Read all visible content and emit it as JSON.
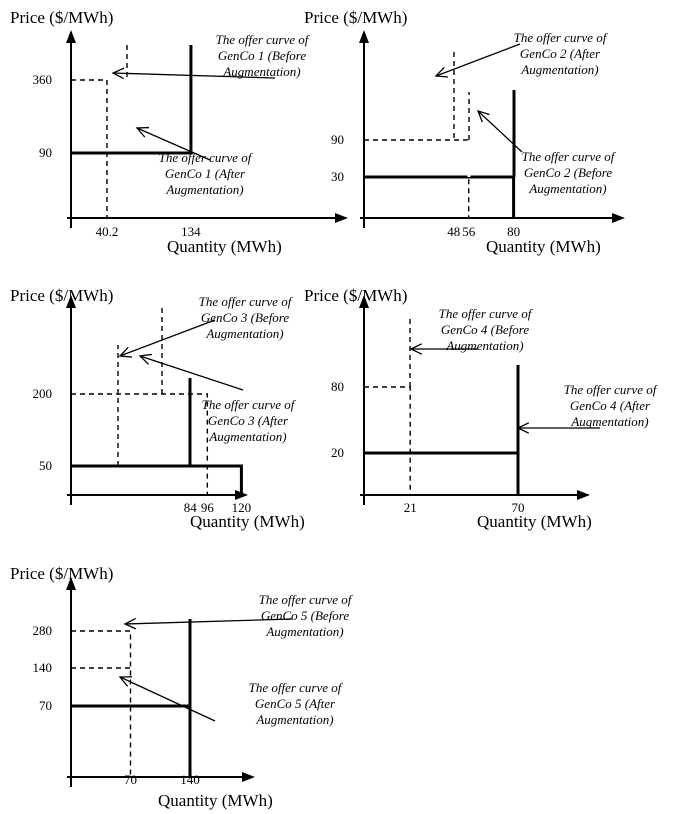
{
  "chart_data": [
    {
      "type": "line",
      "ylabel": "Price ($/MWh)",
      "xlabel": "Quantity (MWh)",
      "x_ticks": [
        "40.2",
        "134"
      ],
      "y_ticks": [
        "90",
        "360"
      ],
      "series": [
        {
          "style": "dashed",
          "x": [
            0,
            40.2,
            40.2
          ],
          "y": [
            360,
            360,
            0
          ]
        },
        {
          "style": "solid",
          "x": [
            0,
            134,
            134
          ],
          "y": [
            90,
            90,
            500
          ]
        }
      ],
      "annotations": [
        {
          "lines": [
            "The offer curve of",
            "GenCo 1 (Before",
            "Augmentation)"
          ]
        },
        {
          "lines": [
            "The offer curve of",
            "GenCo 1 (After",
            "Augmentation)"
          ]
        }
      ]
    },
    {
      "type": "line",
      "ylabel": "Price ($/MWh)",
      "xlabel": "Quantity (MWh)",
      "x_ticks": [
        "48",
        "56",
        "80"
      ],
      "y_ticks": [
        "30",
        "90"
      ],
      "series": [
        {
          "style": "dashed",
          "x": [
            0,
            56,
            56
          ],
          "y": [
            90,
            90,
            0
          ]
        },
        {
          "style": "solid",
          "x": [
            0,
            80,
            80
          ],
          "y": [
            30,
            30,
            0
          ]
        }
      ],
      "annotations": [
        {
          "lines": [
            "The offer curve of",
            "GenCo 2 (After",
            "Augmentation)"
          ]
        },
        {
          "lines": [
            "The offer curve of",
            "GenCo 2 (Before",
            "Augmentation)"
          ]
        }
      ]
    },
    {
      "type": "line",
      "ylabel": "Price ($/MWh)",
      "xlabel": "Quantity (MWh)",
      "x_ticks": [
        "84",
        "96",
        "120"
      ],
      "y_ticks": [
        "50",
        "200"
      ],
      "series": [
        {
          "style": "dashed",
          "x": [
            0,
            96,
            96
          ],
          "y": [
            200,
            200,
            0
          ]
        },
        {
          "style": "solid",
          "x": [
            0,
            120,
            120
          ],
          "y": [
            50,
            50,
            0
          ]
        }
      ],
      "annotations": [
        {
          "lines": [
            "The offer curve of",
            "GenCo 3 (Before",
            "Augmentation)"
          ]
        },
        {
          "lines": [
            "The offer curve of",
            "GenCo 3 (After",
            "Augmentation)"
          ]
        }
      ]
    },
    {
      "type": "line",
      "ylabel": "Price ($/MWh)",
      "xlabel": "Quantity (MWh)",
      "x_ticks": [
        "21",
        "70"
      ],
      "y_ticks": [
        "20",
        "80"
      ],
      "series": [
        {
          "style": "dashed",
          "x": [
            0,
            21,
            21
          ],
          "y": [
            80,
            80,
            0
          ]
        },
        {
          "style": "solid",
          "x": [
            0,
            70,
            70
          ],
          "y": [
            20,
            20,
            0
          ]
        }
      ],
      "annotations": [
        {
          "lines": [
            "The offer curve of",
            "GenCo 4 (Before",
            "Augmentation)"
          ]
        },
        {
          "lines": [
            "The offer curve of",
            "GenCo 4 (After",
            "Augmentation)"
          ]
        }
      ]
    },
    {
      "type": "line",
      "ylabel": "Price ($/MWh)",
      "xlabel": "Quantity (MWh)",
      "x_ticks": [
        "70",
        "140"
      ],
      "y_ticks": [
        "70",
        "140",
        "280"
      ],
      "series": [
        {
          "style": "dashed",
          "x": [
            0,
            70,
            70
          ],
          "y": [
            280,
            280,
            0
          ]
        },
        {
          "style": "dashed",
          "x": [
            0,
            70
          ],
          "y": [
            140,
            140
          ]
        },
        {
          "style": "solid",
          "x": [
            0,
            140,
            140
          ],
          "y": [
            70,
            70,
            0
          ]
        }
      ],
      "annotations": [
        {
          "lines": [
            "The offer curve of",
            "GenCo 5 (Before",
            "Augmentation)"
          ]
        },
        {
          "lines": [
            "The offer curve of",
            "GenCo 5 (After",
            "Augmentation)"
          ]
        }
      ]
    }
  ]
}
